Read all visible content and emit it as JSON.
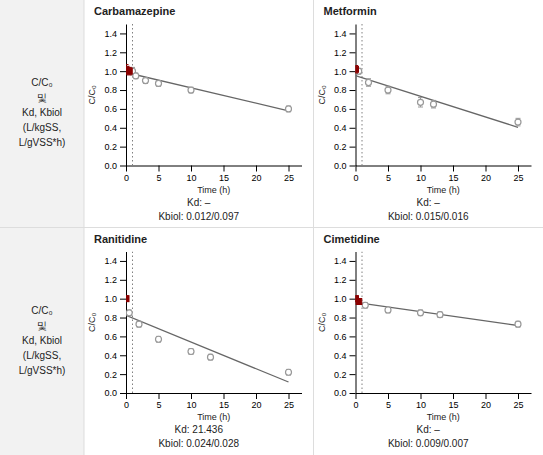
{
  "chart_data": [
    {
      "type": "scatter",
      "title": "Carbamazepine",
      "xlabel": "Time (h)",
      "ylabel": "C/C₀",
      "xlim": [
        0,
        27
      ],
      "ylim": [
        0.0,
        1.5
      ],
      "xticks": [
        0,
        5,
        10,
        15,
        20,
        25
      ],
      "yticks": [
        {
          "value": 0.0,
          "label": "0.0"
        },
        0.2,
        0.4,
        0.6,
        0.8,
        {
          "value": 1.0,
          "label": "1.0"
        },
        1.2,
        1.4
      ],
      "grid": false,
      "vline_x": 1.0,
      "annotations": [
        "Kd: –",
        "Kbiol: 0.012/0.097"
      ],
      "series": [
        {
          "type": "line",
          "line_style": "solid",
          "color": "#666666",
          "x": [
            0,
            25
          ],
          "values": [
            0.9858,
            0.5802
          ]
        },
        {
          "type": "scatter",
          "marker": "open-circle",
          "color": "#999999",
          "x": [
            1.0,
            1.5,
            3,
            5,
            10,
            25
          ],
          "values": [
            1.0,
            0.95,
            0.9,
            0.87,
            0.8,
            0.6
          ],
          "errors": [
            0.04,
            0.03,
            0.03,
            0.03,
            0.03,
            0.03
          ]
        },
        {
          "type": "scatter",
          "marker": "square",
          "color": "#8B0000",
          "x": [
            0,
            0.5
          ],
          "values": [
            1.02,
            1.0
          ],
          "errors": [
            0.05,
            0.04
          ]
        }
      ]
    },
    {
      "type": "scatter",
      "title": "Metformin",
      "xlabel": "Time (h)",
      "ylabel": "C/C₀",
      "xlim": [
        0,
        27
      ],
      "ylim": [
        0.0,
        1.5
      ],
      "xticks": [
        0,
        5,
        10,
        15,
        20,
        25
      ],
      "yticks": [
        {
          "value": 0.0,
          "label": "0.0"
        },
        0.2,
        0.4,
        0.6,
        0.8,
        {
          "value": 1.0,
          "label": "1.0"
        },
        1.2,
        1.4
      ],
      "grid": false,
      "vline_x": 1.0,
      "annotations": [
        "Kd: –",
        "Kbiol: 0.015/0.016"
      ],
      "series": [
        {
          "type": "line",
          "line_style": "solid",
          "color": "#666666",
          "x": [
            0,
            25
          ],
          "values": [
            0.9538,
            0.4049
          ]
        },
        {
          "type": "scatter",
          "marker": "open-circle",
          "color": "#999999",
          "x": [
            0.5,
            2,
            5,
            10,
            12,
            25
          ],
          "values": [
            1.0,
            0.88,
            0.8,
            0.67,
            0.65,
            0.46
          ],
          "errors": [
            0.03,
            0.04,
            0.04,
            0.05,
            0.04,
            0.04
          ]
        },
        {
          "type": "scatter",
          "marker": "square",
          "color": "#8B0000",
          "x": [
            0
          ],
          "values": [
            1.02
          ],
          "errors": [
            0.04
          ]
        }
      ]
    },
    {
      "type": "scatter",
      "title": "Ranitidine",
      "xlabel": "Time (h)",
      "ylabel": "C/C₀",
      "xlim": [
        0,
        27
      ],
      "ylim": [
        0.0,
        1.5
      ],
      "xticks": [
        0,
        5,
        10,
        15,
        20,
        25
      ],
      "yticks": [
        {
          "value": 0.0,
          "label": "0.0"
        },
        0.2,
        0.4,
        0.6,
        0.8,
        {
          "value": 1.0,
          "label": "1.0"
        },
        1.2,
        1.4
      ],
      "grid": false,
      "vline_x": 1.0,
      "annotations": [
        "Kd: 21.436",
        "Kbiol: 0.024/0.028"
      ],
      "series": [
        {
          "type": "line",
          "line_style": "solid",
          "color": "#666666",
          "x": [
            0,
            25
          ],
          "values": [
            0.8225,
            0.1165
          ]
        },
        {
          "type": "scatter",
          "marker": "open-circle",
          "color": "#999999",
          "x": [
            0.5,
            2,
            5,
            10,
            13,
            25
          ],
          "values": [
            0.85,
            0.73,
            0.57,
            0.44,
            0.38,
            0.22
          ],
          "errors": [
            0.03,
            0.03,
            0.03,
            0.03,
            0.03,
            0.03
          ]
        },
        {
          "type": "scatter",
          "marker": "square",
          "color": "#8B0000",
          "x": [
            0
          ],
          "values": [
            1.0
          ],
          "errors": [
            0.03
          ]
        }
      ]
    },
    {
      "type": "scatter",
      "title": "Cimetidine",
      "xlabel": "Time (h)",
      "ylabel": "C/C₀",
      "xlim": [
        0,
        27
      ],
      "ylim": [
        0.0,
        1.5
      ],
      "xticks": [
        0,
        5,
        10,
        15,
        20,
        25
      ],
      "yticks": [
        {
          "value": 0.0,
          "label": "0.0"
        },
        0.2,
        0.4,
        0.6,
        0.8,
        {
          "value": 1.0,
          "label": "1.0"
        },
        1.2,
        1.4
      ],
      "grid": false,
      "vline_x": 1.0,
      "annotations": [
        "Kd: –",
        "Kbiol: 0.009/0.007"
      ],
      "series": [
        {
          "type": "line",
          "line_style": "solid",
          "color": "#666666",
          "x": [
            0,
            25
          ],
          "values": [
            0.9616,
            0.7156
          ]
        },
        {
          "type": "scatter",
          "marker": "open-circle",
          "color": "#999999",
          "x": [
            1.5,
            5,
            10,
            13,
            25
          ],
          "values": [
            0.93,
            0.88,
            0.85,
            0.83,
            0.73
          ],
          "errors": [
            0.03,
            0.03,
            0.03,
            0.03,
            0.03
          ]
        },
        {
          "type": "scatter",
          "marker": "square",
          "color": "#8B0000",
          "x": [
            0,
            0.5
          ],
          "values": [
            1.0,
            0.97
          ],
          "errors": [
            0.03,
            0.03
          ]
        }
      ]
    }
  ],
  "row_labels": [
    [
      "C/C₀",
      "및",
      "Kd, Kbiol",
      "(L/kgSS,",
      "L/gVSS*h)"
    ],
    [
      "C/C₀",
      "및",
      "Kd, Kbiol",
      "(L/kgSS,",
      "L/gVSS*h)"
    ]
  ]
}
